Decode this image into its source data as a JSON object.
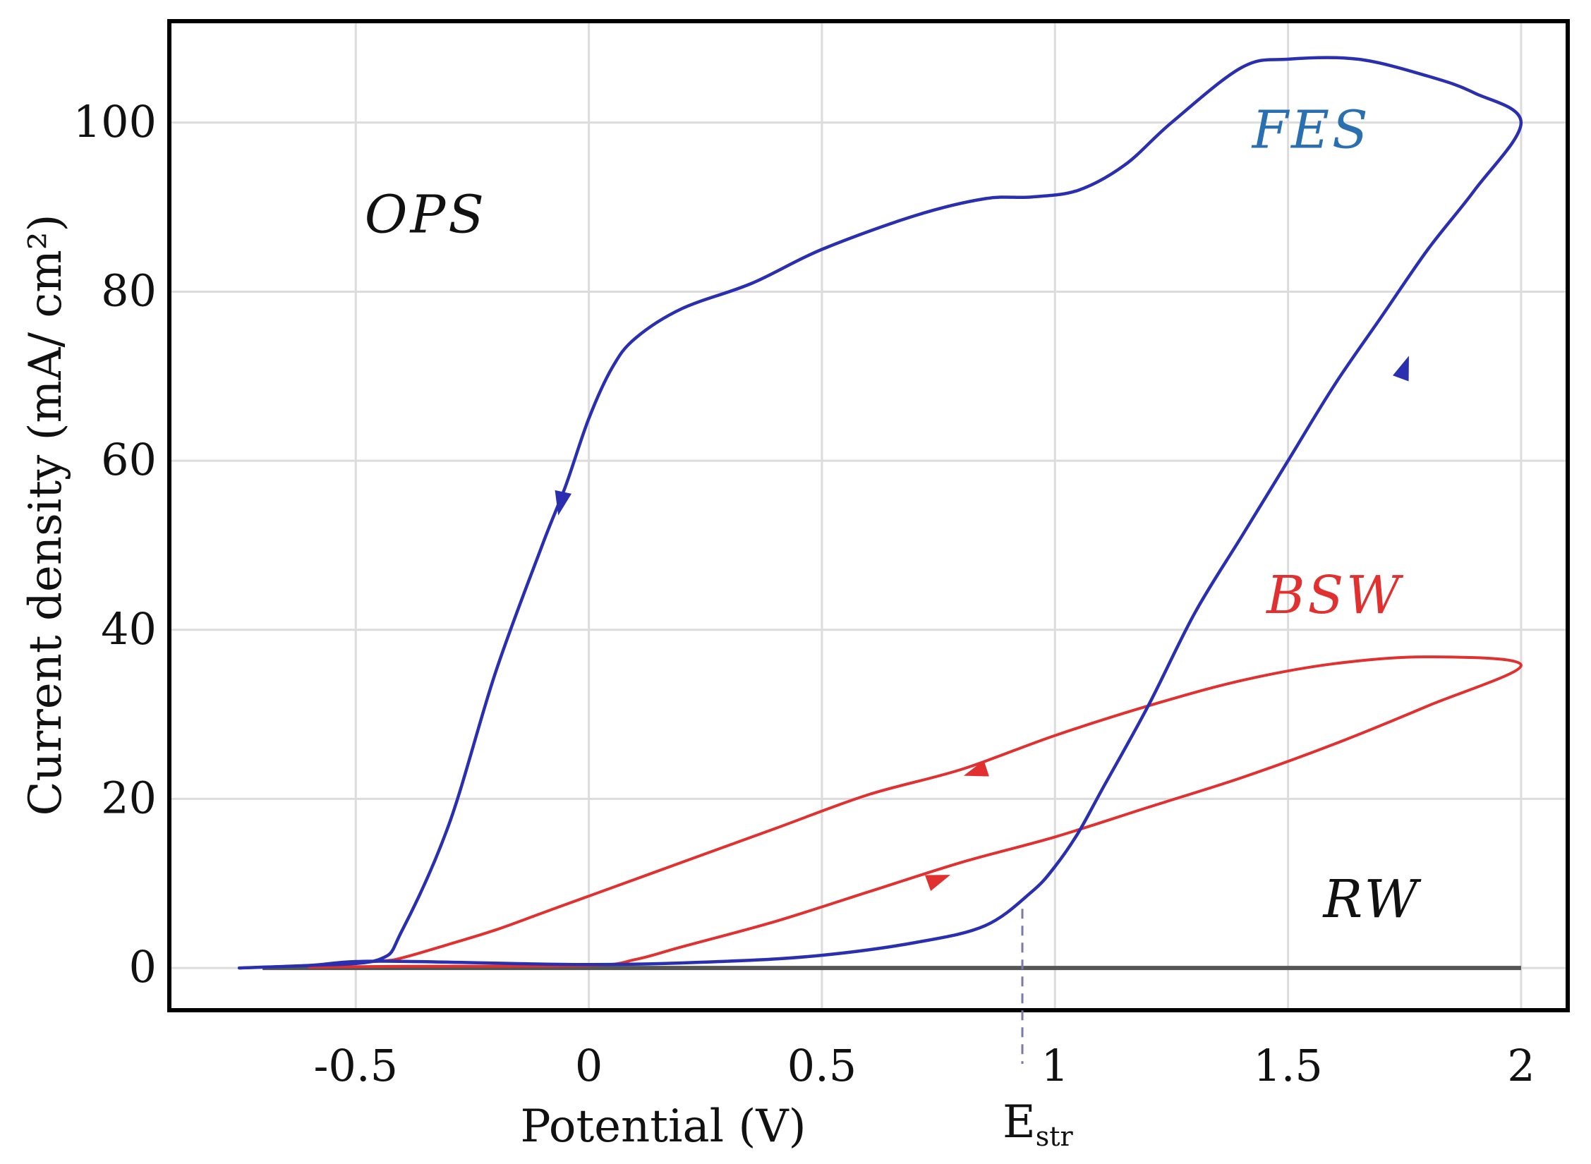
{
  "chart_data": {
    "type": "line",
    "title": "",
    "xlabel": "Potential (V)",
    "ylabel": "Current density (mA/ cm²)",
    "xlim": [
      -0.9,
      2.1
    ],
    "ylim": [
      -5,
      112
    ],
    "xticks": [
      {
        "value": -0.5,
        "label": "-0.5"
      },
      {
        "value": 0,
        "label": "0"
      },
      {
        "value": 0.5,
        "label": "0.5"
      },
      {
        "value": 1,
        "label": "1"
      },
      {
        "value": 1.5,
        "label": "1.5"
      },
      {
        "value": 2,
        "label": "2"
      }
    ],
    "yticks": [
      {
        "value": 0,
        "label": "0"
      },
      {
        "value": 20,
        "label": "20"
      },
      {
        "value": 40,
        "label": "40"
      },
      {
        "value": 60,
        "label": "60"
      },
      {
        "value": 80,
        "label": "80"
      },
      {
        "value": 100,
        "label": "100"
      }
    ],
    "grid": true,
    "legend": "none",
    "series": [
      {
        "name": "RW",
        "color": "#555555",
        "points": [
          [
            -0.7,
            0
          ],
          [
            2.0,
            0
          ]
        ]
      },
      {
        "name": "BSW",
        "color": "#e03030",
        "points": [
          [
            -0.75,
            0
          ],
          [
            -0.6,
            0.3
          ],
          [
            -0.45,
            0.8
          ],
          [
            -0.4,
            1.2
          ],
          [
            -0.3,
            2.8
          ],
          [
            -0.2,
            4.5
          ],
          [
            -0.1,
            6.5
          ],
          [
            0,
            8.5
          ],
          [
            0.2,
            12.5
          ],
          [
            0.4,
            16.5
          ],
          [
            0.6,
            20.5
          ],
          [
            0.8,
            23.5
          ],
          [
            1.0,
            27.5
          ],
          [
            1.2,
            31
          ],
          [
            1.4,
            34
          ],
          [
            1.6,
            36
          ],
          [
            1.8,
            36.8
          ],
          [
            2.0,
            35.8
          ],
          [
            1.8,
            31
          ],
          [
            1.6,
            26.5
          ],
          [
            1.4,
            22.5
          ],
          [
            1.2,
            19
          ],
          [
            1.0,
            15.5
          ],
          [
            0.8,
            12.5
          ],
          [
            0.6,
            9
          ],
          [
            0.4,
            5.5
          ],
          [
            0.2,
            2.5
          ],
          [
            0.1,
            1
          ],
          [
            0,
            0.3
          ],
          [
            -0.4,
            0.2
          ],
          [
            -0.6,
            0.1
          ]
        ],
        "arrows": [
          {
            "x": 0.83,
            "y": 23.2,
            "direction": "left"
          },
          {
            "x": 0.75,
            "y": 10.5,
            "direction": "right"
          }
        ]
      },
      {
        "name": "FES",
        "color": "#2a2fb0",
        "points": [
          [
            -0.75,
            0
          ],
          [
            -0.6,
            0.3
          ],
          [
            -0.45,
            0.8
          ],
          [
            0,
            0.4
          ],
          [
            0.3,
            0.8
          ],
          [
            0.5,
            1.5
          ],
          [
            0.7,
            3
          ],
          [
            0.85,
            5
          ],
          [
            0.95,
            9
          ],
          [
            1.0,
            12
          ],
          [
            1.05,
            16
          ],
          [
            1.1,
            21
          ],
          [
            1.2,
            31
          ],
          [
            1.3,
            42
          ],
          [
            1.4,
            51
          ],
          [
            1.5,
            60
          ],
          [
            1.6,
            69
          ],
          [
            1.7,
            77
          ],
          [
            1.8,
            85
          ],
          [
            1.9,
            92
          ],
          [
            2.0,
            100
          ],
          [
            1.9,
            103.5
          ],
          [
            1.8,
            105.5
          ],
          [
            1.65,
            107.5
          ],
          [
            1.5,
            107.5
          ],
          [
            1.4,
            106.5
          ],
          [
            1.25,
            100
          ],
          [
            1.15,
            95
          ],
          [
            1.05,
            92
          ],
          [
            0.95,
            91.2
          ],
          [
            0.85,
            91
          ],
          [
            0.7,
            89
          ],
          [
            0.5,
            85
          ],
          [
            0.35,
            81
          ],
          [
            0.2,
            78
          ],
          [
            0.1,
            74.5
          ],
          [
            0.05,
            71
          ],
          [
            0,
            65
          ],
          [
            -0.05,
            57
          ],
          [
            -0.1,
            50
          ],
          [
            -0.2,
            35
          ],
          [
            -0.3,
            17
          ],
          [
            -0.4,
            4.5
          ],
          [
            -0.45,
            1
          ],
          [
            -0.6,
            0.3
          ]
        ],
        "arrows": [
          {
            "x": -0.06,
            "y": 55,
            "direction": "down"
          },
          {
            "x": 1.75,
            "y": 71,
            "direction": "up"
          }
        ]
      }
    ],
    "annotations": [
      {
        "text": "OPS",
        "x": -0.35,
        "y": 87,
        "color": "#111111"
      },
      {
        "text": "FES",
        "x": 1.55,
        "y": 97,
        "color": "#2a6fb0"
      },
      {
        "text": "BSW",
        "x": 1.6,
        "y": 42,
        "color": "#e03030"
      },
      {
        "text": "RW",
        "x": 1.68,
        "y": 6,
        "color": "#111111"
      }
    ],
    "reference_lines": [
      {
        "label": "E",
        "subscript": "str",
        "x": 0.93,
        "y_from": 7,
        "y_to": -12,
        "color": "#7a7ab0",
        "style": "dashed"
      }
    ]
  }
}
